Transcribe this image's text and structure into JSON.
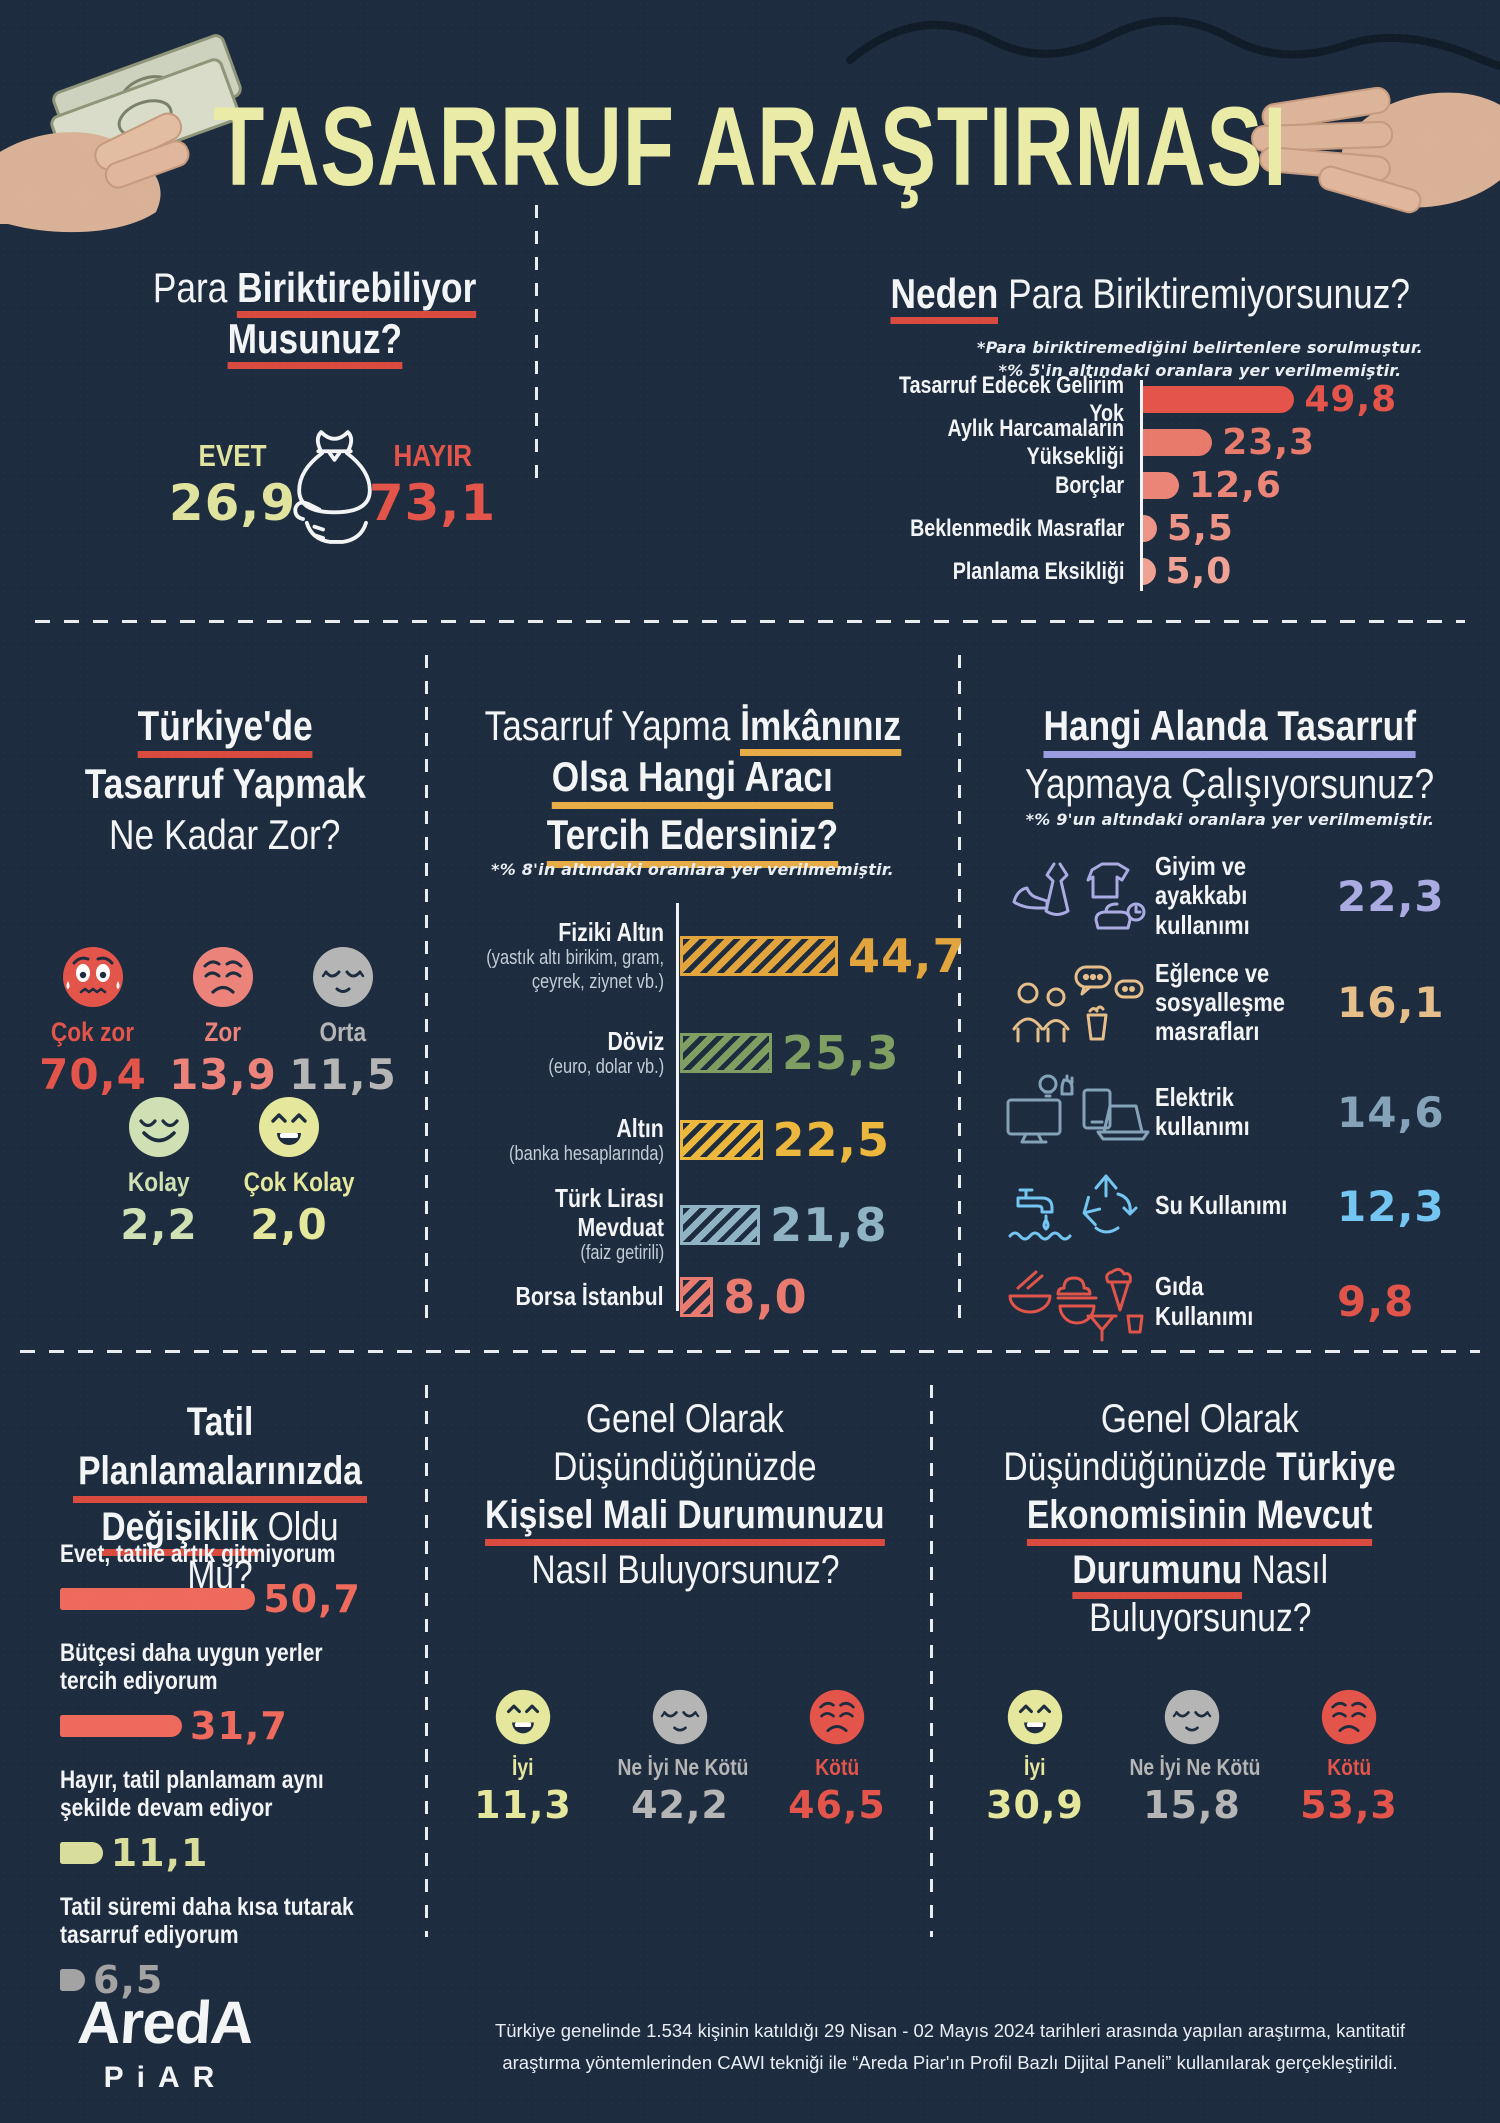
{
  "header": {
    "title": "TASARRUF ARAŞTIRMASI"
  },
  "palette": {
    "background": "#1d2c3e",
    "title_yellow": "#e9eba6",
    "accent_red": "#e3544a",
    "underline_red": "#d94b3f",
    "underline_gold": "#e8ac47",
    "underline_lavender": "#9a9ce0",
    "white": "#f2f4f5"
  },
  "q1": {
    "title_regular": "Para ",
    "title_bold1": "Biriktirebiliyor",
    "title_bold2": "Musunuz?",
    "options": [
      {
        "label": "EVET",
        "value": "26,9",
        "color": "#dfe39d"
      },
      {
        "label": "HAYIR",
        "value": "73,1",
        "color": "#e3544a"
      }
    ],
    "icon": "money-bag-in-hand"
  },
  "q2": {
    "title_bold": "Neden",
    "title_regular": " Para Biriktiremiyorsunuz?",
    "notes": [
      "*Para biriktiremediğini belirtenlere sorulmuştur.",
      "*% 5'in altındaki oranlara yer verilmemiştir."
    ],
    "bars": [
      {
        "label": "Tasarruf Edecek Gelirim Yok",
        "value": "49,8",
        "num": 49.8,
        "color": "#e4544a"
      },
      {
        "label": "Aylık Harcamaların Yüksekliği",
        "value": "23,3",
        "num": 23.3,
        "color": "#e87a6c"
      },
      {
        "label": "Borçlar",
        "value": "12,6",
        "num": 12.6,
        "color": "#ea8577"
      },
      {
        "label": "Beklenmedik Masraflar",
        "value": "5,5",
        "num": 5.5,
        "color": "#ed9486"
      },
      {
        "label": "Planlama Eksikliği",
        "value": "5,0",
        "num": 5.0,
        "color": "#efa294"
      }
    ]
  },
  "q3": {
    "title_line1": "Türkiye'de",
    "title_line2": "Tasarruf Yapmak",
    "title_line3": "Ne Kadar Zor?",
    "faces": [
      {
        "label": "Çok zor",
        "value": "70,4",
        "color": "#e3544a",
        "face": "worried"
      },
      {
        "label": "Zor",
        "value": "13,9",
        "color": "#ec837a",
        "face": "sad"
      },
      {
        "label": "Orta",
        "value": "11,5",
        "color": "#b5b5b5",
        "face": "sleepy"
      },
      {
        "label": "Kolay",
        "value": "2,2",
        "color": "#cfe0b4",
        "face": "smile"
      },
      {
        "label": "Çok Kolay",
        "value": "2,0",
        "color": "#e4e79c",
        "face": "laugh"
      }
    ]
  },
  "q4": {
    "title_regular": "Tasarruf Yapma ",
    "title_bold1": "İmkânınız",
    "title_bold2": "Olsa Hangi Aracı",
    "title_bold3": "Tercih Edersiniz?",
    "note": "*% 8'in altındaki oranlara yer verilmemiştir.",
    "bars": [
      {
        "label": "Fiziki Altın",
        "sub": "(yastık altı birikim, gram, çeyrek, ziynet vb.)",
        "value": "44,7",
        "num": 44.7,
        "color": "#e2a43c"
      },
      {
        "label": "Döviz",
        "sub": "(euro, dolar vb.)",
        "value": "25,3",
        "num": 25.3,
        "color": "#7e9e62"
      },
      {
        "label": "Altın",
        "sub": "(banka hesaplarında)",
        "value": "22,5",
        "num": 22.5,
        "color": "#ecb73d"
      },
      {
        "label": "Türk Lirası Mevduat",
        "sub": "(faiz getirili)",
        "value": "21,8",
        "num": 21.8,
        "color": "#8fb3c3"
      },
      {
        "label": "Borsa İstanbul",
        "sub": "",
        "value": "8,0",
        "num": 8.0,
        "color": "#e87a70"
      }
    ]
  },
  "q5": {
    "title_bold": "Hangi Alanda Tasarruf",
    "title_regular": "Yapmaya Çalışıyorsunuz?",
    "note": "*% 9'un altındaki oranlara yer verilmemiştir.",
    "items": [
      {
        "label": "Giyim ve ayakkabı kullanımı",
        "value": "22,3",
        "color": "#a9abe2",
        "icon": "clothing"
      },
      {
        "label": "Eğlence ve sosyalleşme masrafları",
        "value": "16,1",
        "color": "#e5be8a",
        "icon": "social"
      },
      {
        "label": "Elektrik kullanımı",
        "value": "14,6",
        "color": "#84a2b8",
        "icon": "electronics"
      },
      {
        "label": "Su Kullanımı",
        "value": "12,3",
        "color": "#74c5f2",
        "icon": "water"
      },
      {
        "label": "Gıda Kullanımı",
        "value": "9,8",
        "color": "#e05449",
        "icon": "food"
      }
    ]
  },
  "q6": {
    "title_bold1": "Tatil Planlamalarınızda",
    "title_bold2": "Değişiklik",
    "title_regular": " Oldu Mu?",
    "bars": [
      {
        "label": "Evet, tatile artık gitmiyorum",
        "value": "50,7",
        "num": 50.7,
        "color": "#ed6a5c"
      },
      {
        "label": "Bütçesi daha uygun yerler tercih ediyorum",
        "value": "31,7",
        "num": 31.7,
        "color": "#ed6a5c"
      },
      {
        "label": "Hayır, tatil planlamam aynı şekilde devam ediyor",
        "value": "11,1",
        "num": 11.1,
        "color": "#d9dd9c"
      },
      {
        "label": "Tatil süremi daha kısa tutarak tasarruf ediyorum",
        "value": "6,5",
        "num": 6.5,
        "color": "#a3a3a3"
      }
    ]
  },
  "q7": {
    "title_line1": "Genel Olarak",
    "title_line2": "Düşündüğünüzde",
    "title_bold": "Kişisel Mali Durumunuzu",
    "title_line4": "Nasıl Buluyorsunuz?",
    "faces": [
      {
        "label": "İyi",
        "value": "11,3",
        "color": "#e4e79c",
        "face": "laugh"
      },
      {
        "label": "Ne İyi Ne Kötü",
        "value": "42,2",
        "color": "#b5b5b5",
        "face": "sleepy"
      },
      {
        "label": "Kötü",
        "value": "46,5",
        "color": "#e3544a",
        "face": "sad"
      }
    ]
  },
  "q8": {
    "title_line1": "Genel Olarak",
    "title_line2a": "Düşündüğünüzde ",
    "title_line2b": "Türkiye",
    "title_bold3": "Ekonomisinin Mevcut",
    "title_bold4a": "Durumunu",
    "title_line4b": " Nasıl",
    "title_line5": "Buluyorsunuz?",
    "faces": [
      {
        "label": "İyi",
        "value": "30,9",
        "color": "#e4e79c",
        "face": "laugh"
      },
      {
        "label": "Ne İyi Ne Kötü",
        "value": "15,8",
        "color": "#b5b5b5",
        "face": "sleepy"
      },
      {
        "label": "Kötü",
        "value": "53,3",
        "color": "#e3544a",
        "face": "sad"
      }
    ]
  },
  "footer": {
    "logo_line1": "AredA",
    "logo_line2": "PiAR",
    "text_line1": "Türkiye genelinde 1.534 kişinin katıldığı 29 Nisan - 02 Mayıs 2024 tarihleri arasında yapılan araştırma, kantitatif",
    "text_line2": "araştırma yöntemlerinden CAWI tekniği ile “Areda Piar'ın Profil Bazlı Dijital Paneli” kullanılarak gerçekleştirildi."
  },
  "chart_data": [
    {
      "type": "pie",
      "title": "Para Biriktirebiliyor Musunuz?",
      "categories": [
        "Evet",
        "Hayır"
      ],
      "values": [
        26.9,
        73.1
      ],
      "unit": "%"
    },
    {
      "type": "bar",
      "orientation": "horizontal",
      "title": "Neden Para Biriktiremiyorsunuz?",
      "note": "Para biriktiremediğini belirtenlere sorulmuştur; %5'in altındaki oranlara yer verilmemiştir.",
      "categories": [
        "Tasarruf Edecek Gelirim Yok",
        "Aylık Harcamaların Yüksekliği",
        "Borçlar",
        "Beklenmedik Masraflar",
        "Planlama Eksikliği"
      ],
      "values": [
        49.8,
        23.3,
        12.6,
        5.5,
        5.0
      ],
      "unit": "%"
    },
    {
      "type": "bar",
      "title": "Türkiye'de Tasarruf Yapmak Ne Kadar Zor?",
      "categories": [
        "Çok zor",
        "Zor",
        "Orta",
        "Kolay",
        "Çok Kolay"
      ],
      "values": [
        70.4,
        13.9,
        11.5,
        2.2,
        2.0
      ],
      "unit": "%"
    },
    {
      "type": "bar",
      "orientation": "horizontal",
      "title": "Tasarruf Yapma İmkânınız Olsa Hangi Aracı Tercih Edersiniz?",
      "note": "%8'in altındaki oranlara yer verilmemiştir.",
      "categories": [
        "Fiziki Altın (yastık altı birikim, gram, çeyrek, ziynet vb.)",
        "Döviz (euro, dolar vb.)",
        "Altın (banka hesaplarında)",
        "Türk Lirası Mevduat (faiz getirili)",
        "Borsa İstanbul"
      ],
      "values": [
        44.7,
        25.3,
        22.5,
        21.8,
        8.0
      ],
      "unit": "%"
    },
    {
      "type": "bar",
      "title": "Hangi Alanda Tasarruf Yapmaya Çalışıyorsunuz?",
      "note": "%9'un altındaki oranlara yer verilmemiştir.",
      "categories": [
        "Giyim ve ayakkabı kullanımı",
        "Eğlence ve sosyalleşme masrafları",
        "Elektrik kullanımı",
        "Su Kullanımı",
        "Gıda Kullanımı"
      ],
      "values": [
        22.3,
        16.1,
        14.6,
        12.3,
        9.8
      ],
      "unit": "%"
    },
    {
      "type": "bar",
      "orientation": "horizontal",
      "title": "Tatil Planlamalarınızda Değişiklik Oldu Mu?",
      "categories": [
        "Evet, tatile artık gitmiyorum",
        "Bütçesi daha uygun yerler tercih ediyorum",
        "Hayır, tatil planlamam aynı şekilde devam ediyor",
        "Tatil süremi daha kısa tutarak tasarruf ediyorum"
      ],
      "values": [
        50.7,
        31.7,
        11.1,
        6.5
      ],
      "unit": "%"
    },
    {
      "type": "bar",
      "title": "Genel Olarak Düşündüğünüzde Kişisel Mali Durumunuzu Nasıl Buluyorsunuz?",
      "categories": [
        "İyi",
        "Ne İyi Ne Kötü",
        "Kötü"
      ],
      "values": [
        11.3,
        42.2,
        46.5
      ],
      "unit": "%"
    },
    {
      "type": "bar",
      "title": "Genel Olarak Düşündüğünüzde Türkiye Ekonomisinin Mevcut Durumunu Nasıl Buluyorsunuz?",
      "categories": [
        "İyi",
        "Ne İyi Ne Kötü",
        "Kötü"
      ],
      "values": [
        30.9,
        15.8,
        53.3
      ],
      "unit": "%"
    }
  ]
}
